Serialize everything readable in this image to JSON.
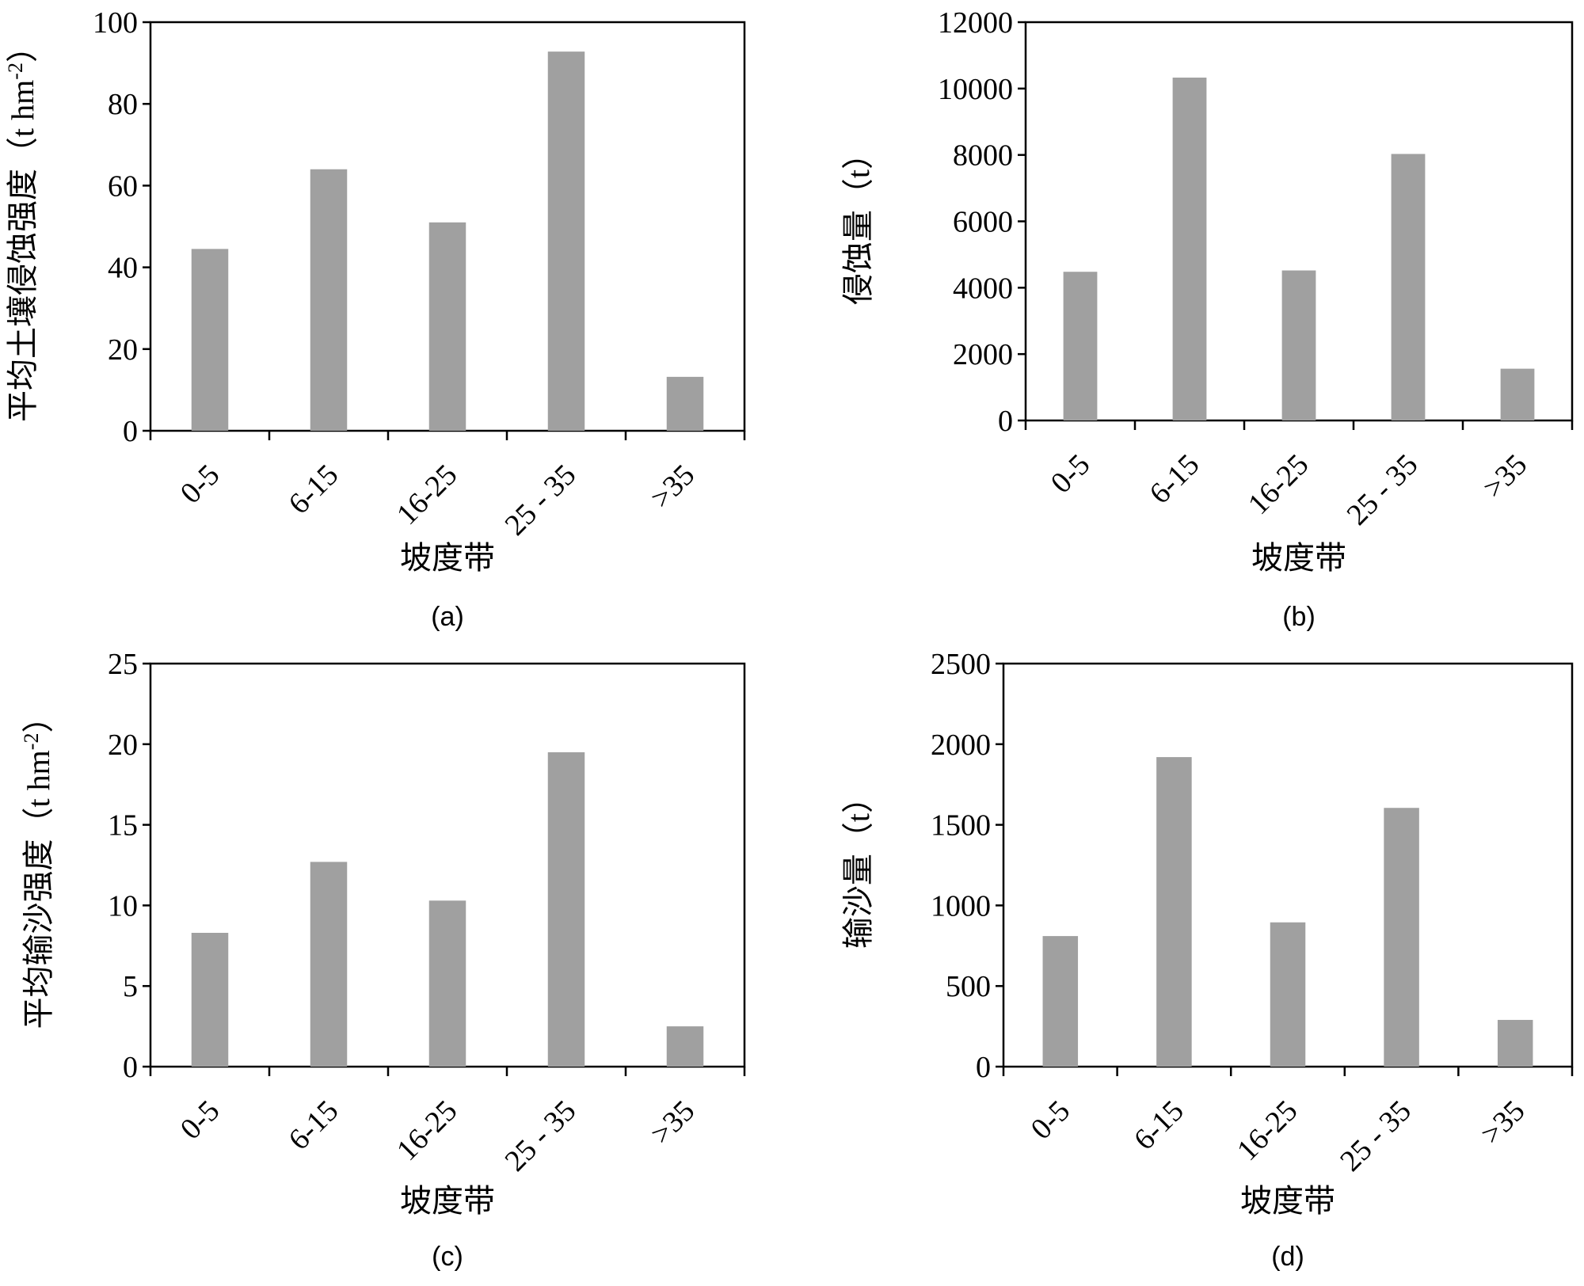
{
  "chart_data": [
    {
      "type": "bar",
      "panel_label": "(a)",
      "categories": [
        "0-5",
        "6-15",
        "16-25",
        "25 - 35",
        ">35"
      ],
      "values": [
        44.5,
        64,
        51,
        92.8,
        13.2
      ],
      "xlabel": "坡度带",
      "ylabel": "平均土壤侵蚀强度（t hm",
      "ylabel_sup": "-2",
      "ylabel_close": "）",
      "ylim": [
        0,
        100
      ],
      "yticks": [
        0,
        20,
        40,
        60,
        80,
        100
      ],
      "grid": false,
      "color": "#a0a0a0"
    },
    {
      "type": "bar",
      "panel_label": "(b)",
      "categories": [
        "0-5",
        "6-15",
        "16-25",
        "25 - 35",
        ">35"
      ],
      "values": [
        4480,
        10330,
        4520,
        8030,
        1560
      ],
      "xlabel": "坡度带",
      "ylabel": "侵蚀量（t）",
      "ylabel_sup": "",
      "ylabel_close": "",
      "ylim": [
        0,
        12000
      ],
      "yticks": [
        0,
        2000,
        4000,
        6000,
        8000,
        10000,
        12000
      ],
      "grid": false,
      "color": "#a0a0a0"
    },
    {
      "type": "bar",
      "panel_label": "(c)",
      "categories": [
        "0-5",
        "6-15",
        "16-25",
        "25 - 35",
        ">35"
      ],
      "values": [
        8.3,
        12.7,
        10.3,
        19.5,
        2.5
      ],
      "xlabel": "坡度带",
      "ylabel": "平均输沙强度（t hm",
      "ylabel_sup": "-2",
      "ylabel_close": "）",
      "ylim": [
        0,
        25
      ],
      "yticks": [
        0,
        5,
        10,
        15,
        20,
        25
      ],
      "grid": false,
      "color": "#a0a0a0"
    },
    {
      "type": "bar",
      "panel_label": "(d)",
      "categories": [
        "0-5",
        "6-15",
        "16-25",
        "25 - 35",
        ">35"
      ],
      "values": [
        810,
        1920,
        895,
        1605,
        290
      ],
      "xlabel": "坡度带",
      "ylabel": "输沙量（t）",
      "ylabel_sup": "",
      "ylabel_close": "",
      "ylim": [
        0,
        2500
      ],
      "yticks": [
        0,
        500,
        1000,
        1500,
        2000,
        2500
      ],
      "grid": false,
      "color": "#a0a0a0"
    }
  ]
}
